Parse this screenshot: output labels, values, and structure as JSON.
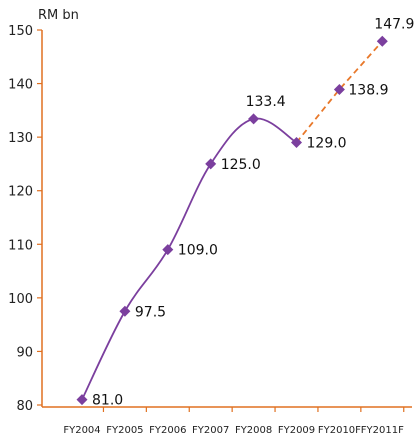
{
  "chart_data": {
    "type": "line",
    "ylabel": "RM bn",
    "ylim": [
      80,
      150
    ],
    "yticks": [
      80,
      90,
      100,
      110,
      120,
      130,
      140,
      150
    ],
    "categories": [
      "FY2004",
      "FY2005",
      "FY2006",
      "FY2007",
      "FY2008",
      "FY2009",
      "FY2010F",
      "FY2011F"
    ],
    "values": [
      81.0,
      97.5,
      109.0,
      125.0,
      133.4,
      129.0,
      138.9,
      147.9
    ],
    "value_labels": [
      "81.0",
      "97.5",
      "109.0",
      "125.0",
      "133.4",
      "129.0",
      "138.9",
      "147.9"
    ],
    "actual_last_index": 5,
    "colors": {
      "actual_line": "#7b3f9e",
      "marker": "#7b3f9e",
      "forecast_line": "#e8782a",
      "axis": "#e07020"
    },
    "grid": false,
    "legend": "none"
  }
}
